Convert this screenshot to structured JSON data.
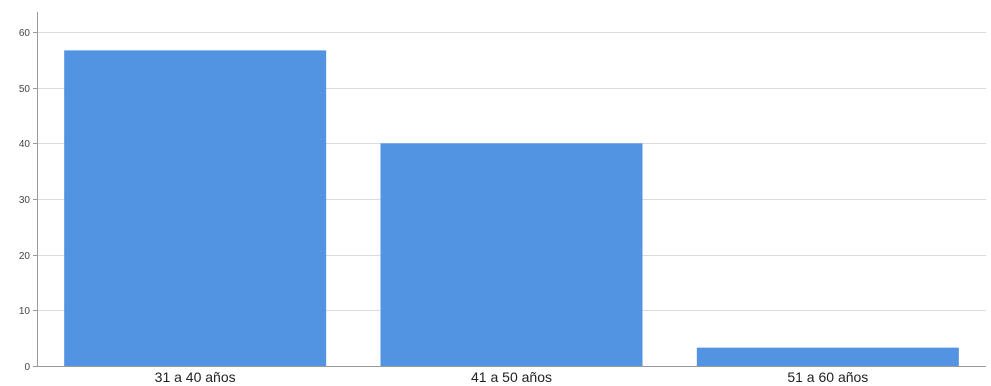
{
  "chart_data": {
    "type": "bar",
    "categories": [
      "31 a 40 años",
      "41 a 50 años",
      "51 a 60 años"
    ],
    "values": [
      56.7,
      40.0,
      3.3
    ],
    "ylim": [
      0,
      60
    ],
    "yticks": [
      0,
      10,
      20,
      30,
      40,
      50,
      60
    ],
    "grid": true,
    "legend": "none",
    "title": "",
    "xlabel": "",
    "ylabel": "",
    "colors": {
      "bar": "#5294e2",
      "grid": "#dcdcdc",
      "axis": "#9a9a9a"
    }
  }
}
